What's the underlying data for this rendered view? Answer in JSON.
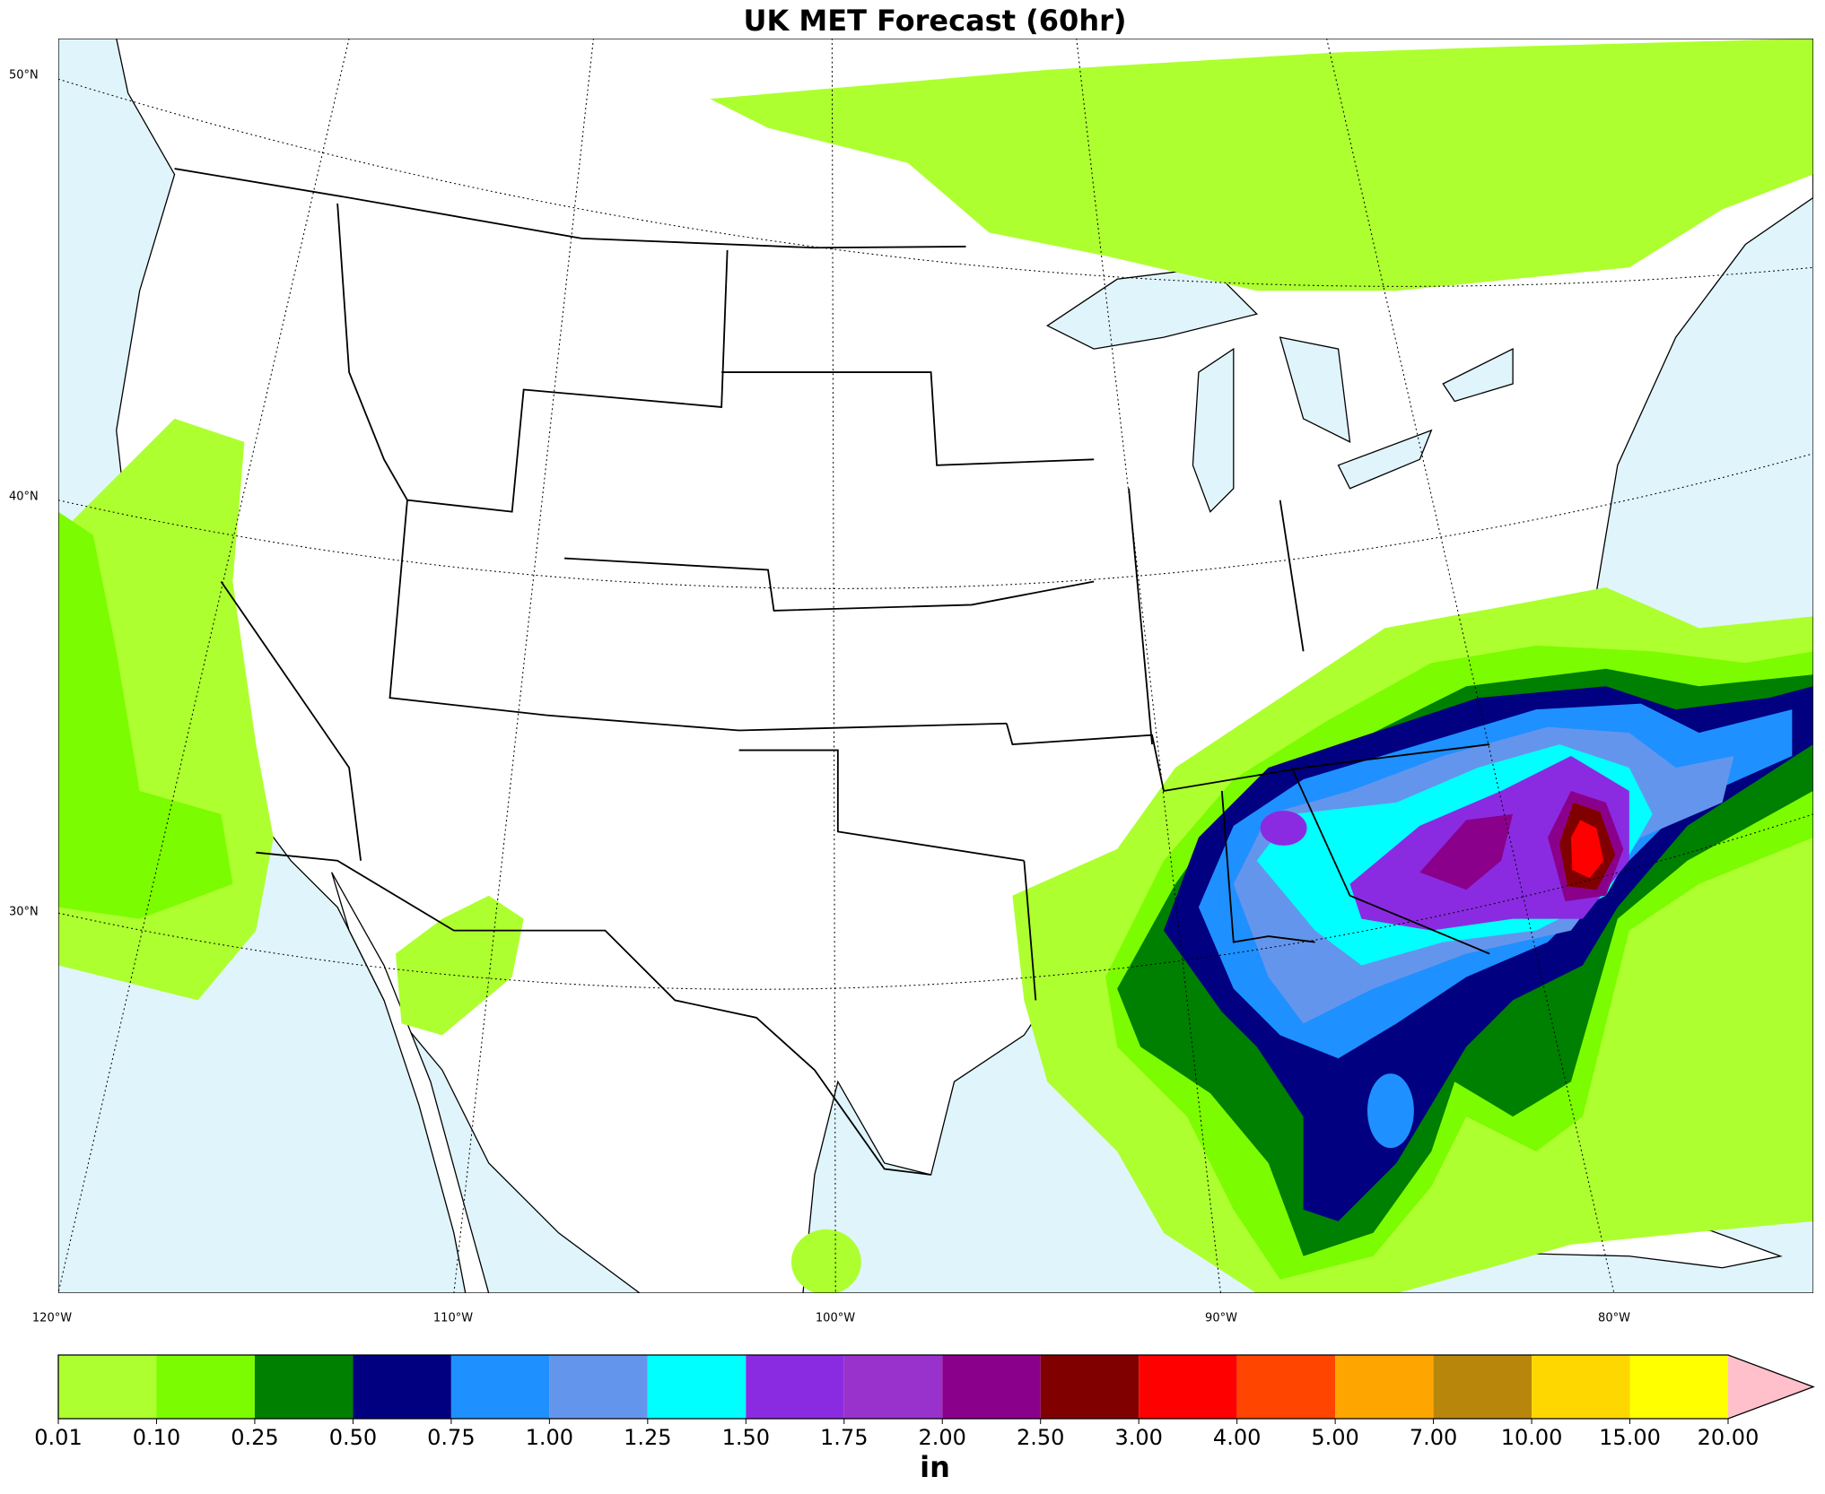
{
  "title": "UK MET Forecast (60hr)",
  "map": {
    "lat_labels": [
      "50°N",
      "40°N",
      "30°N"
    ],
    "lon_labels": [
      "120°W",
      "110°W",
      "100°W",
      "90°W",
      "80°W"
    ]
  },
  "colorbar": {
    "levels": [
      "0.01",
      "0.10",
      "0.25",
      "0.50",
      "0.75",
      "1.00",
      "1.25",
      "1.50",
      "1.75",
      "2.00",
      "2.50",
      "3.00",
      "4.00",
      "5.00",
      "7.00",
      "10.00",
      "15.00",
      "20.00"
    ],
    "colors": [
      "#adff2f",
      "#7cfc00",
      "#008000",
      "#000080",
      "#1e90ff",
      "#6495ed",
      "#00ffff",
      "#8a2be2",
      "#9932cc",
      "#8b008b",
      "#800000",
      "#ff0000",
      "#ff4500",
      "#ffa500",
      "#b8860b",
      "#ffd700",
      "#ffff00"
    ],
    "extend_color": "#ffc0cb",
    "unit": "in"
  }
}
